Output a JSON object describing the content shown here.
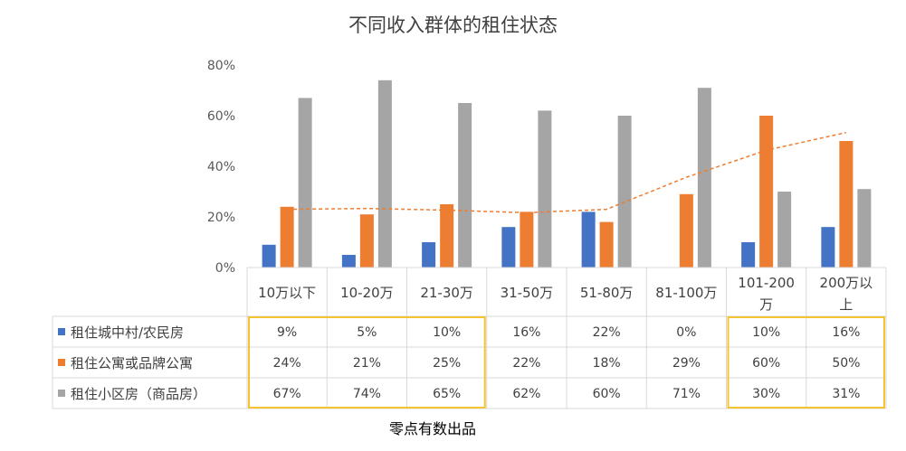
{
  "chart_data": {
    "type": "bar",
    "title": "不同收入群体的租住状态",
    "categories": [
      [
        "10万以下"
      ],
      [
        "10-20万"
      ],
      [
        "21-30万"
      ],
      [
        "31-50万"
      ],
      [
        "51-80万"
      ],
      [
        "81-100万"
      ],
      [
        "101-200",
        "万"
      ],
      [
        "200万以",
        "上"
      ]
    ],
    "series": [
      {
        "name": "租住城中村/农民房",
        "color": "#4472C4",
        "values": [
          9,
          5,
          10,
          16,
          22,
          0,
          10,
          16
        ],
        "labels": [
          "9%",
          "5%",
          "10%",
          "16%",
          "22%",
          "0%",
          "10%",
          "16%"
        ]
      },
      {
        "name": "租住公寓或品牌公寓",
        "color": "#ED7D31",
        "values": [
          24,
          21,
          25,
          22,
          18,
          29,
          60,
          50
        ],
        "labels": [
          "24%",
          "21%",
          "25%",
          "22%",
          "18%",
          "29%",
          "60%",
          "50%"
        ]
      },
      {
        "name": "租住小区房（商品房）",
        "color": "#A5A5A5",
        "values": [
          67,
          74,
          65,
          62,
          60,
          71,
          30,
          31
        ],
        "labels": [
          "67%",
          "74%",
          "65%",
          "62%",
          "60%",
          "71%",
          "30%",
          "31%"
        ]
      }
    ],
    "trendline": {
      "series": "租住公寓或品牌公寓",
      "color": "#ED7D31",
      "style": "dashed"
    },
    "ylim": [
      0,
      80
    ],
    "yticks": [
      0,
      20,
      40,
      60,
      80
    ],
    "ytick_labels": [
      "0%",
      "20%",
      "40%",
      "60%",
      "80%"
    ],
    "data_table": true,
    "highlight_color": "#F4C430",
    "highlighted_columns": [
      [
        0,
        2
      ],
      [
        6,
        7
      ]
    ]
  },
  "footer": "零点有数出品"
}
